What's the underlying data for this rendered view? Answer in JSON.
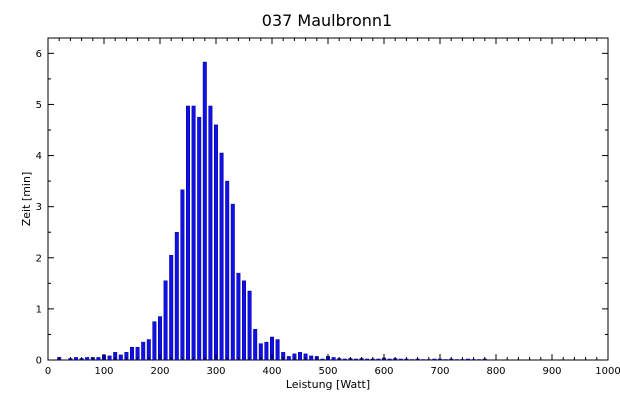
{
  "chart_data": {
    "type": "bar",
    "title": "037 Maulbronn1",
    "xlabel": "Leistung [Watt]",
    "ylabel": "Zeit [min]",
    "xlim": [
      0,
      1000
    ],
    "ylim": [
      0,
      6.3
    ],
    "xticks": [
      0,
      100,
      200,
      300,
      400,
      500,
      600,
      700,
      800,
      900,
      1000
    ],
    "yticks": [
      0,
      1,
      2,
      3,
      4,
      5,
      6
    ],
    "grid": false,
    "bar_color": "#1010ee",
    "bar_edge_color": "#000080",
    "bin_width": 10,
    "x": [
      20,
      40,
      50,
      60,
      70,
      80,
      90,
      100,
      110,
      120,
      130,
      140,
      150,
      160,
      170,
      180,
      190,
      200,
      210,
      220,
      230,
      240,
      250,
      260,
      270,
      280,
      290,
      300,
      310,
      320,
      330,
      340,
      350,
      360,
      370,
      380,
      390,
      400,
      410,
      420,
      430,
      440,
      450,
      460,
      470,
      480,
      490,
      500,
      510,
      520,
      530,
      540,
      550,
      560,
      570,
      580,
      590,
      600,
      610,
      620,
      630,
      640,
      650,
      660,
      670,
      680,
      690,
      700,
      710,
      720,
      730,
      740,
      750,
      760,
      770,
      780
    ],
    "values": [
      0.05,
      0.03,
      0.05,
      0.03,
      0.05,
      0.05,
      0.05,
      0.1,
      0.08,
      0.15,
      0.1,
      0.15,
      0.25,
      0.25,
      0.35,
      0.4,
      0.75,
      0.85,
      1.55,
      2.05,
      2.5,
      3.33,
      4.97,
      4.97,
      4.75,
      5.83,
      4.97,
      4.6,
      4.05,
      3.5,
      3.05,
      1.7,
      1.55,
      1.35,
      0.6,
      0.32,
      0.35,
      0.45,
      0.4,
      0.15,
      0.07,
      0.12,
      0.15,
      0.12,
      0.08,
      0.07,
      0.02,
      0.07,
      0.05,
      0.03,
      0.02,
      0.03,
      0.02,
      0.03,
      0.02,
      0.02,
      0.02,
      0.04,
      0.02,
      0.03,
      0.02,
      0.02,
      0.01,
      0.02,
      0.01,
      0.01,
      0.02,
      0.02,
      0.01,
      0.02,
      0.01,
      0.01,
      0.02,
      0.01,
      0.01,
      0.02
    ]
  }
}
